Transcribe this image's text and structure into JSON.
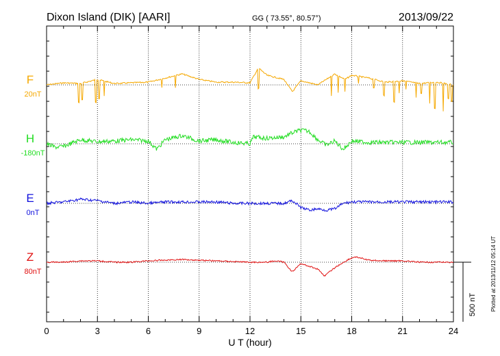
{
  "header": {
    "station": "Dixon Island (DIK)  [AARI]",
    "coords": "GG ( 73.55°,  80.57°)",
    "date": "2013/09/22"
  },
  "footer": {
    "plotted": "Plotted at 2013/11/12 05:14 UT"
  },
  "chart_data": {
    "type": "line",
    "xlabel": "U T (hour)",
    "xlim": [
      0,
      24
    ],
    "xticks": [
      0,
      3,
      6,
      9,
      12,
      15,
      18,
      21,
      24
    ],
    "xtick_labels": [
      "0",
      "3",
      "6",
      "9",
      "12",
      "15",
      "18",
      "21",
      "24"
    ],
    "scale_bar_label": "500 nT",
    "scale_bar_nT": 500,
    "colors": {
      "F": "#f5a800",
      "H": "#22dd22",
      "E": "#1010dd",
      "Z": "#e01010"
    },
    "series": [
      {
        "name": "F",
        "baseline_label": "20nT",
        "baseline_nT": 20,
        "color": "#f5a800",
        "offset": [
          [
            0,
            0
          ],
          [
            1,
            -3
          ],
          [
            2,
            -2
          ],
          [
            3,
            -8
          ],
          [
            4,
            -2
          ],
          [
            5,
            -3
          ],
          [
            6,
            -4
          ],
          [
            7,
            -10
          ],
          [
            8,
            -16
          ],
          [
            9,
            -8
          ],
          [
            10,
            -4
          ],
          [
            11,
            -4
          ],
          [
            12,
            -3
          ],
          [
            12.5,
            -25
          ],
          [
            13,
            -14
          ],
          [
            14,
            -8
          ],
          [
            14.5,
            10
          ],
          [
            15,
            -6
          ],
          [
            16,
            0
          ],
          [
            17,
            -16
          ],
          [
            17.6,
            -8
          ],
          [
            18,
            -14
          ],
          [
            19,
            -10
          ],
          [
            20,
            -4
          ],
          [
            21,
            -6
          ],
          [
            22,
            -2
          ],
          [
            23,
            -4
          ],
          [
            24,
            0
          ]
        ],
        "spikes": [
          [
            1.9,
            28
          ],
          [
            2.1,
            25
          ],
          [
            2.9,
            33
          ],
          [
            3.1,
            27
          ],
          [
            3.4,
            22
          ],
          [
            6.8,
            12
          ],
          [
            7.6,
            17
          ],
          [
            12.5,
            30
          ],
          [
            16.8,
            28
          ],
          [
            17.2,
            25
          ],
          [
            17.6,
            18
          ],
          [
            18.4,
            10
          ],
          [
            19.3,
            12
          ],
          [
            19.9,
            20
          ],
          [
            20.5,
            30
          ],
          [
            20.8,
            17
          ],
          [
            21.2,
            12
          ],
          [
            21.8,
            22
          ],
          [
            22.1,
            14
          ],
          [
            22.6,
            30
          ],
          [
            22.9,
            38
          ],
          [
            23.4,
            40
          ],
          [
            23.7,
            22
          ],
          [
            23.9,
            24
          ]
        ]
      },
      {
        "name": "H",
        "baseline_label": "-180nT",
        "baseline_nT": -180,
        "color": "#22dd22",
        "offset": [
          [
            0,
            0
          ],
          [
            0.5,
            5
          ],
          [
            1,
            4
          ],
          [
            2,
            -6
          ],
          [
            3,
            -3
          ],
          [
            4,
            -4
          ],
          [
            5,
            -6
          ],
          [
            6,
            -4
          ],
          [
            6.5,
            8
          ],
          [
            7,
            -6
          ],
          [
            8,
            -12
          ],
          [
            9,
            -4
          ],
          [
            10,
            -6
          ],
          [
            11,
            -2
          ],
          [
            12,
            0
          ],
          [
            12.2,
            -10
          ],
          [
            13,
            -8
          ],
          [
            14,
            -10
          ],
          [
            14.5,
            -16
          ],
          [
            15,
            -20
          ],
          [
            15.5,
            -18
          ],
          [
            16,
            -6
          ],
          [
            16.5,
            2
          ],
          [
            17,
            -4
          ],
          [
            17.5,
            8
          ],
          [
            18,
            -4
          ],
          [
            19,
            -2
          ],
          [
            20,
            -2
          ],
          [
            21,
            -2
          ],
          [
            22,
            -2
          ],
          [
            23,
            -2
          ],
          [
            24,
            -2
          ]
        ]
      },
      {
        "name": "E",
        "baseline_label": "0nT",
        "baseline_nT": 0,
        "color": "#1010dd",
        "offset": [
          [
            0,
            0
          ],
          [
            1,
            -2
          ],
          [
            2,
            -6
          ],
          [
            3,
            -4
          ],
          [
            4,
            0
          ],
          [
            5,
            -2
          ],
          [
            6,
            0
          ],
          [
            7,
            -2
          ],
          [
            8,
            -2
          ],
          [
            9,
            -2
          ],
          [
            10,
            -2
          ],
          [
            11,
            0
          ],
          [
            12,
            0
          ],
          [
            13,
            0
          ],
          [
            14,
            0
          ],
          [
            14.5,
            -4
          ],
          [
            15,
            6
          ],
          [
            15.5,
            10
          ],
          [
            16,
            8
          ],
          [
            16.5,
            10
          ],
          [
            17,
            8
          ],
          [
            17.5,
            0
          ],
          [
            18,
            -2
          ],
          [
            19,
            -2
          ],
          [
            20,
            -2
          ],
          [
            21,
            -2
          ],
          [
            22,
            -2
          ],
          [
            23,
            -2
          ],
          [
            24,
            -2
          ]
        ]
      },
      {
        "name": "Z",
        "baseline_label": "80nT",
        "baseline_nT": 80,
        "color": "#e01010",
        "offset": [
          [
            0,
            0
          ],
          [
            1,
            0
          ],
          [
            2,
            -2
          ],
          [
            3,
            -2
          ],
          [
            4,
            0
          ],
          [
            5,
            0
          ],
          [
            6,
            -2
          ],
          [
            7,
            -3
          ],
          [
            8,
            -4
          ],
          [
            9,
            -3
          ],
          [
            10,
            -2
          ],
          [
            11,
            -1
          ],
          [
            12,
            0
          ],
          [
            13,
            0
          ],
          [
            13.5,
            -2
          ],
          [
            14,
            0
          ],
          [
            14.5,
            14
          ],
          [
            15,
            2
          ],
          [
            15.5,
            6
          ],
          [
            16,
            10
          ],
          [
            16.4,
            20
          ],
          [
            17,
            8
          ],
          [
            17.8,
            -4
          ],
          [
            18.2,
            -8
          ],
          [
            19,
            -3
          ],
          [
            20,
            -2
          ],
          [
            21,
            -2
          ],
          [
            22,
            0
          ],
          [
            23,
            0
          ],
          [
            24,
            0
          ]
        ]
      }
    ]
  }
}
